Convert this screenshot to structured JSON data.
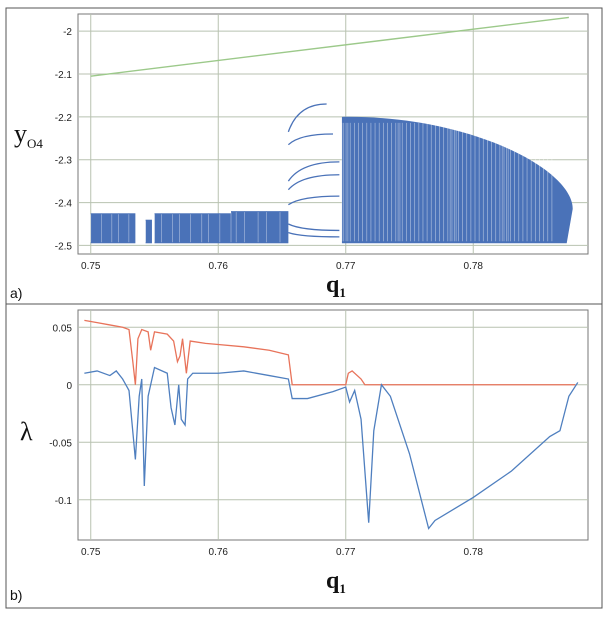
{
  "chart_data": [
    {
      "panel": "a)",
      "type": "scatter",
      "xlabel": "q",
      "xlabel_sub": "1",
      "ylabel": "y",
      "ylabel_sub": "O4",
      "xlim": [
        0.749,
        0.789
      ],
      "ylim": [
        -2.52,
        -1.96
      ],
      "xticks": [
        "0.75",
        "0.76",
        "0.77",
        "0.78"
      ],
      "xtick_values": [
        0.75,
        0.76,
        0.77,
        0.78
      ],
      "yticks": [
        "-2",
        "-2.1",
        "-2.2",
        "-2.3",
        "-2.4",
        "-2.5"
      ],
      "ytick_values": [
        -2.0,
        -2.1,
        -2.2,
        -2.3,
        -2.4,
        -2.5
      ],
      "grid": true,
      "series": [
        {
          "kind": "line",
          "color": "#9cc98a",
          "points": [
            [
              0.75,
              -2.105
            ],
            [
              0.7875,
              -1.968
            ]
          ]
        },
        {
          "kind": "chaotic-band",
          "color": "#4a72b8",
          "bands": [
            {
              "x": [
                0.75,
                0.7535
              ],
              "y": [
                -2.495,
                -2.425
              ]
            },
            {
              "x": [
                0.7543,
                0.7548
              ],
              "y": [
                -2.495,
                -2.44
              ]
            },
            {
              "x": [
                0.755,
                0.761
              ],
              "y": [
                -2.495,
                -2.425
              ]
            },
            {
              "x": [
                0.761,
                0.7655
              ],
              "y": [
                -2.495,
                -2.42
              ]
            }
          ],
          "chaotic_cloud": {
            "x_start": 0.7697,
            "x_end": 0.7878,
            "y_min": -2.495,
            "y_max_start": -2.2,
            "y_tip": -2.415
          },
          "period_branches": [
            {
              "points": [
                [
                  0.7655,
                  -2.235
                ],
                [
                  0.7685,
                  -2.17
                ]
              ]
            },
            {
              "points": [
                [
                  0.7655,
                  -2.265
                ],
                [
                  0.769,
                  -2.24
                ]
              ]
            },
            {
              "points": [
                [
                  0.7655,
                  -2.35
                ],
                [
                  0.7695,
                  -2.305
                ]
              ]
            },
            {
              "points": [
                [
                  0.7655,
                  -2.37
                ],
                [
                  0.7695,
                  -2.335
                ]
              ]
            },
            {
              "points": [
                [
                  0.7655,
                  -2.405
                ],
                [
                  0.7695,
                  -2.385
                ]
              ]
            },
            {
              "points": [
                [
                  0.7655,
                  -2.45
                ],
                [
                  0.7695,
                  -2.465
                ]
              ]
            },
            {
              "points": [
                [
                  0.7655,
                  -2.47
                ],
                [
                  0.7695,
                  -2.48
                ]
              ]
            }
          ]
        }
      ]
    },
    {
      "panel": "b)",
      "type": "line",
      "xlabel": "q",
      "xlabel_sub": "1",
      "ylabel": "λ",
      "xlim": [
        0.749,
        0.789
      ],
      "ylim": [
        -0.135,
        0.065
      ],
      "xticks": [
        "0.75",
        "0.76",
        "0.77",
        "0.78"
      ],
      "xtick_values": [
        0.75,
        0.76,
        0.77,
        0.78
      ],
      "yticks": [
        "0.05",
        "0",
        "-0.05",
        "-0.1"
      ],
      "ytick_values": [
        0.05,
        0.0,
        -0.05,
        -0.1
      ],
      "grid": true,
      "series": [
        {
          "color": "#e8735a",
          "points": [
            [
              0.7495,
              0.056
            ],
            [
              0.7505,
              0.054
            ],
            [
              0.7515,
              0.052
            ],
            [
              0.7525,
              0.05
            ],
            [
              0.753,
              0.048
            ],
            [
              0.7533,
              0.02
            ],
            [
              0.7535,
              0.0
            ],
            [
              0.7537,
              0.04
            ],
            [
              0.754,
              0.048
            ],
            [
              0.7545,
              0.046
            ],
            [
              0.7547,
              0.03
            ],
            [
              0.755,
              0.046
            ],
            [
              0.756,
              0.044
            ],
            [
              0.7565,
              0.038
            ],
            [
              0.7568,
              0.02
            ],
            [
              0.757,
              0.025
            ],
            [
              0.7572,
              0.04
            ],
            [
              0.7575,
              0.01
            ],
            [
              0.7578,
              0.038
            ],
            [
              0.759,
              0.036
            ],
            [
              0.76,
              0.035
            ],
            [
              0.762,
              0.033
            ],
            [
              0.764,
              0.03
            ],
            [
              0.7655,
              0.026
            ],
            [
              0.7658,
              0.0
            ],
            [
              0.77,
              0.0
            ],
            [
              0.7702,
              0.01
            ],
            [
              0.7705,
              0.012
            ],
            [
              0.7712,
              0.005
            ],
            [
              0.7715,
              0.0
            ],
            [
              0.788,
              0.0
            ]
          ]
        },
        {
          "color": "#4f7fbf",
          "points": [
            [
              0.7495,
              0.01
            ],
            [
              0.7505,
              0.012
            ],
            [
              0.7515,
              0.008
            ],
            [
              0.752,
              0.012
            ],
            [
              0.7525,
              0.005
            ],
            [
              0.753,
              -0.005
            ],
            [
              0.7535,
              -0.065
            ],
            [
              0.7538,
              -0.01
            ],
            [
              0.754,
              0.005
            ],
            [
              0.7542,
              -0.088
            ],
            [
              0.7545,
              -0.01
            ],
            [
              0.755,
              0.015
            ],
            [
              0.756,
              0.01
            ],
            [
              0.7563,
              -0.02
            ],
            [
              0.7566,
              -0.035
            ],
            [
              0.7569,
              0.0
            ],
            [
              0.7571,
              -0.03
            ],
            [
              0.7574,
              -0.035
            ],
            [
              0.7576,
              0.005
            ],
            [
              0.758,
              0.01
            ],
            [
              0.76,
              0.01
            ],
            [
              0.762,
              0.012
            ],
            [
              0.764,
              0.008
            ],
            [
              0.7655,
              0.005
            ],
            [
              0.7658,
              -0.012
            ],
            [
              0.767,
              -0.012
            ],
            [
              0.769,
              -0.006
            ],
            [
              0.77,
              -0.002
            ],
            [
              0.7703,
              -0.015
            ],
            [
              0.7707,
              -0.005
            ],
            [
              0.7712,
              -0.03
            ],
            [
              0.7718,
              -0.12
            ],
            [
              0.7722,
              -0.04
            ],
            [
              0.7728,
              0.0
            ],
            [
              0.7735,
              -0.01
            ],
            [
              0.775,
              -0.06
            ],
            [
              0.7765,
              -0.125
            ],
            [
              0.777,
              -0.118
            ],
            [
              0.78,
              -0.098
            ],
            [
              0.783,
              -0.075
            ],
            [
              0.786,
              -0.045
            ],
            [
              0.7868,
              -0.04
            ],
            [
              0.7875,
              -0.01
            ],
            [
              0.7882,
              0.002
            ]
          ]
        }
      ]
    }
  ]
}
